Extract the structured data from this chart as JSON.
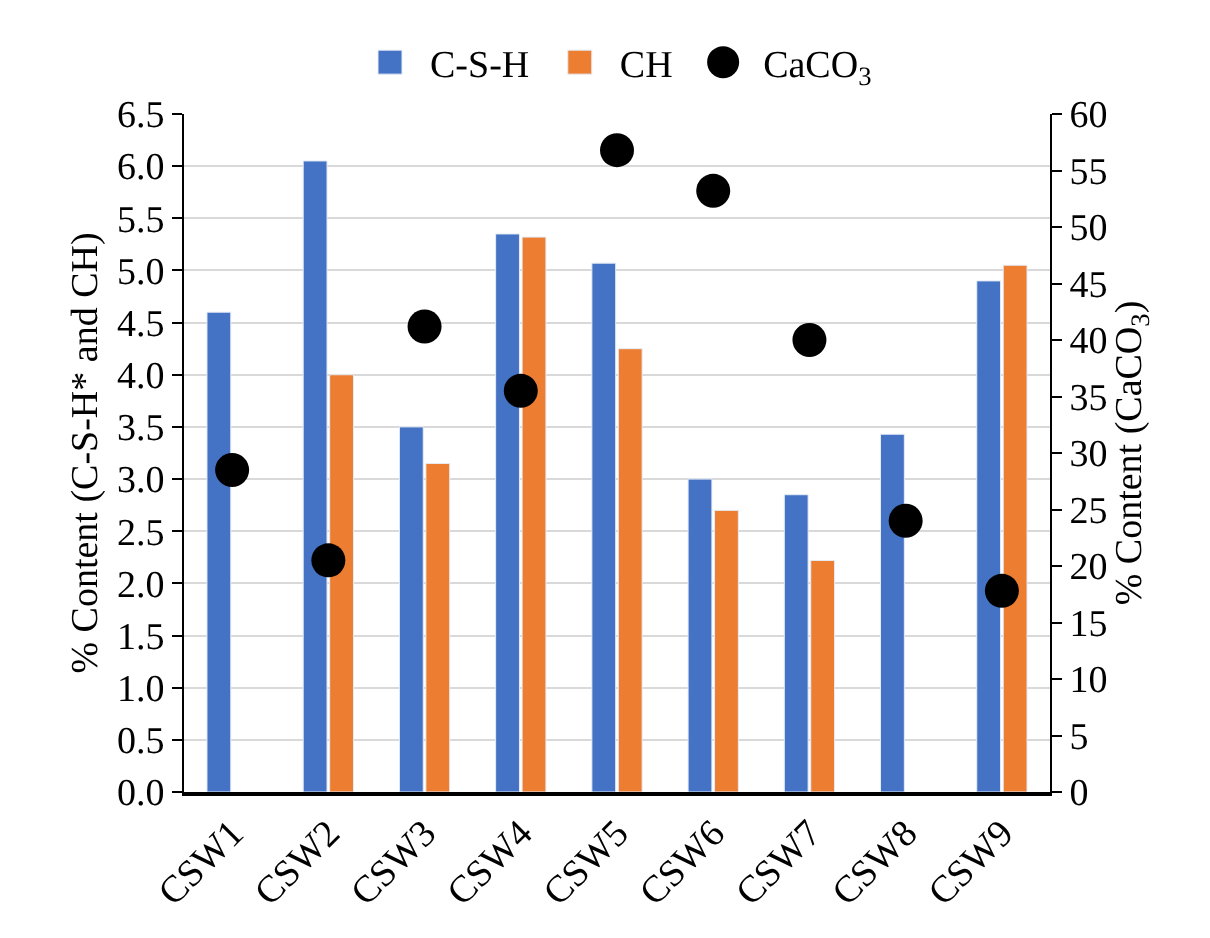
{
  "chart_data": {
    "type": "bar",
    "ylabel": "% Content (C-S-H* and CH)",
    "y2label": "% Content (CaCO$_{3}$)",
    "categories": [
      "CSW1",
      "CSW2",
      "CSW3",
      "CSW4",
      "CSW5",
      "CSW6",
      "CSW7",
      "CSW8",
      "CSW9"
    ],
    "series": [
      {
        "name": "C-S-H",
        "color": "#4472c4",
        "values": [
          4.6,
          6.05,
          3.5,
          5.35,
          5.07,
          3.0,
          2.85,
          3.43,
          4.9
        ]
      },
      {
        "name": "CH",
        "color": "#ed7d31",
        "values": [
          null,
          4.0,
          3.15,
          5.32,
          4.25,
          2.7,
          2.22,
          null,
          5.05
        ]
      },
      {
        "name": "CaCO$_{3}$",
        "type": "scatter",
        "axis": "y2",
        "marker": "circle",
        "color": "#000000",
        "values": [
          28.5,
          20.5,
          41.2,
          35.5,
          56.8,
          53.2,
          40.0,
          24.0,
          17.8
        ]
      }
    ],
    "ylim": [
      0,
      6.5
    ],
    "yticks": [
      {
        "value": 0,
        "label": "0.0"
      },
      0.5,
      {
        "value": 1,
        "label": "1.0"
      },
      1.5,
      {
        "value": 2,
        "label": "2.0"
      },
      2.5,
      {
        "value": 3,
        "label": "3.0"
      },
      3.5,
      {
        "value": 4,
        "label": "4.0"
      },
      4.5,
      {
        "value": 5,
        "label": "5.0"
      },
      5.5,
      {
        "value": 6,
        "label": "6.0"
      },
      6.5
    ],
    "y2lim": [
      0,
      60
    ],
    "y2ticks": [
      0,
      5,
      10,
      15,
      20,
      25,
      30,
      35,
      40,
      45,
      50,
      55,
      60
    ],
    "grid": "y",
    "legend": "top"
  }
}
